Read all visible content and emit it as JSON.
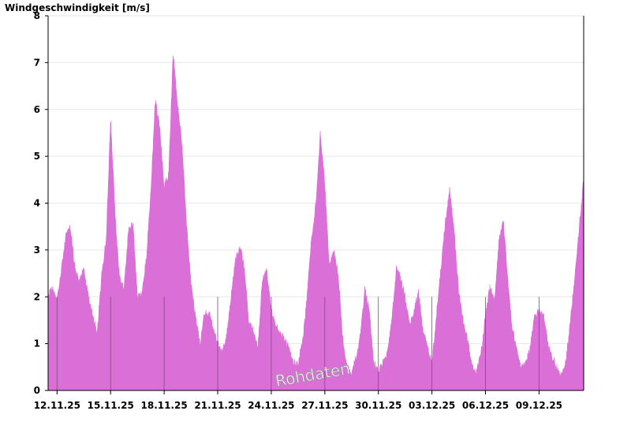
{
  "chart_data": {
    "type": "area",
    "title": "",
    "ylabel": "Windgeschwindigkeit [m/s]",
    "xlabel": "",
    "ylim": [
      0,
      8
    ],
    "yticks": [
      0,
      1,
      2,
      3,
      4,
      5,
      6,
      7,
      8
    ],
    "xlim": [
      "2025-11-11T12:00",
      "2025-12-11T12:00"
    ],
    "xtick_labels": [
      "12.11.25",
      "15.11.25",
      "18.11.25",
      "21.11.25",
      "24.11.25",
      "27.11.25",
      "30.11.25",
      "03.12.25",
      "06.12.25",
      "09.12.25"
    ],
    "grid": true,
    "watermark": "Rohdaten",
    "color": "#da6fd8",
    "series": [
      {
        "x_start": "2025-11-11T12:00",
        "step_hours": 6,
        "values": [
          2.0,
          2.2,
          1.9,
          2.6,
          3.3,
          3.5,
          2.6,
          2.3,
          2.6,
          2.0,
          1.6,
          1.2,
          2.5,
          3.2,
          5.8,
          3.8,
          2.4,
          2.2,
          3.4,
          3.6,
          2.0,
          2.1,
          2.8,
          4.2,
          6.2,
          5.6,
          4.4,
          4.6,
          7.2,
          6.1,
          5.3,
          3.6,
          2.3,
          1.6,
          1.0,
          1.6,
          1.7,
          1.3,
          1.0,
          0.8,
          1.2,
          2.0,
          2.8,
          3.1,
          2.6,
          1.4,
          1.3,
          0.9,
          2.4,
          2.6,
          1.7,
          1.4,
          1.2,
          1.1,
          0.9,
          0.6,
          0.6,
          1.0,
          2.0,
          3.2,
          4.0,
          5.5,
          4.4,
          2.7,
          3.0,
          2.5,
          1.1,
          0.5,
          0.4,
          0.7,
          1.2,
          2.2,
          1.7,
          0.6,
          0.4,
          0.6,
          0.8,
          1.5,
          2.6,
          2.4,
          2.0,
          1.4,
          1.7,
          2.1,
          1.3,
          0.9,
          0.6,
          1.6,
          2.6,
          3.6,
          4.3,
          3.4,
          2.1,
          1.5,
          1.1,
          0.5,
          0.4,
          0.8,
          1.6,
          2.2,
          1.9,
          3.2,
          3.6,
          2.4,
          1.3,
          0.9,
          0.5,
          0.6,
          0.9,
          1.6,
          1.7,
          1.6,
          1.0,
          0.7,
          0.5,
          0.3,
          0.6,
          1.5,
          2.4,
          3.5,
          4.5,
          4.0,
          4.6,
          4.5,
          2.3,
          1.4,
          0.9,
          0.6,
          0.8,
          1.1,
          1.1,
          0.8,
          1.2,
          1.8,
          2.2,
          1.5,
          0.8,
          0.7,
          1.3,
          1.2,
          1.4,
          1.5,
          0.9,
          0.7,
          0.5,
          0.4,
          0.5,
          0.8,
          1.0,
          1.1,
          1.3,
          0.8,
          1.6,
          2.6,
          3.9,
          5.3,
          6.3,
          5.6,
          7.0,
          7.7,
          6.5,
          5.8,
          5.2,
          4.6,
          2.6,
          1.6,
          1.2,
          1.4,
          2.5,
          3.1,
          2.9,
          3.2,
          3.6,
          2.4,
          1.8,
          2.8,
          2.0,
          1.6,
          1.0,
          2.9,
          3.2,
          2.7,
          1.7,
          1.4,
          0.9,
          0.6,
          0.9,
          1.3,
          1.5,
          1.4,
          1.9,
          2.4,
          2.0,
          2.1,
          2.1,
          1.8,
          2.3,
          2.2,
          1.8,
          1.0,
          1.4,
          1.7,
          1.2,
          0.8,
          0.6,
          0.4,
          0.5,
          0.3,
          0.2,
          0.0,
          0.0,
          0.0,
          0.1,
          0.2,
          0.5,
          0.7,
          1.2,
          2.3,
          3.0,
          4.2,
          4.8,
          5.2,
          5.2,
          5.5,
          5.0,
          4.6,
          4.0,
          4.6,
          4.5,
          5.2,
          3.6,
          4.8,
          5.5,
          6.0,
          6.3,
          5.6,
          6.5,
          7.3,
          7.5,
          6.5,
          5.4,
          5.5,
          4.2,
          2.5,
          1.0,
          0.9,
          1.6,
          2.6,
          4.6,
          4.4,
          4.2,
          4.2,
          3.0,
          2.4,
          1.4,
          0.6,
          1.0,
          1.2,
          1.7
        ]
      }
    ]
  }
}
